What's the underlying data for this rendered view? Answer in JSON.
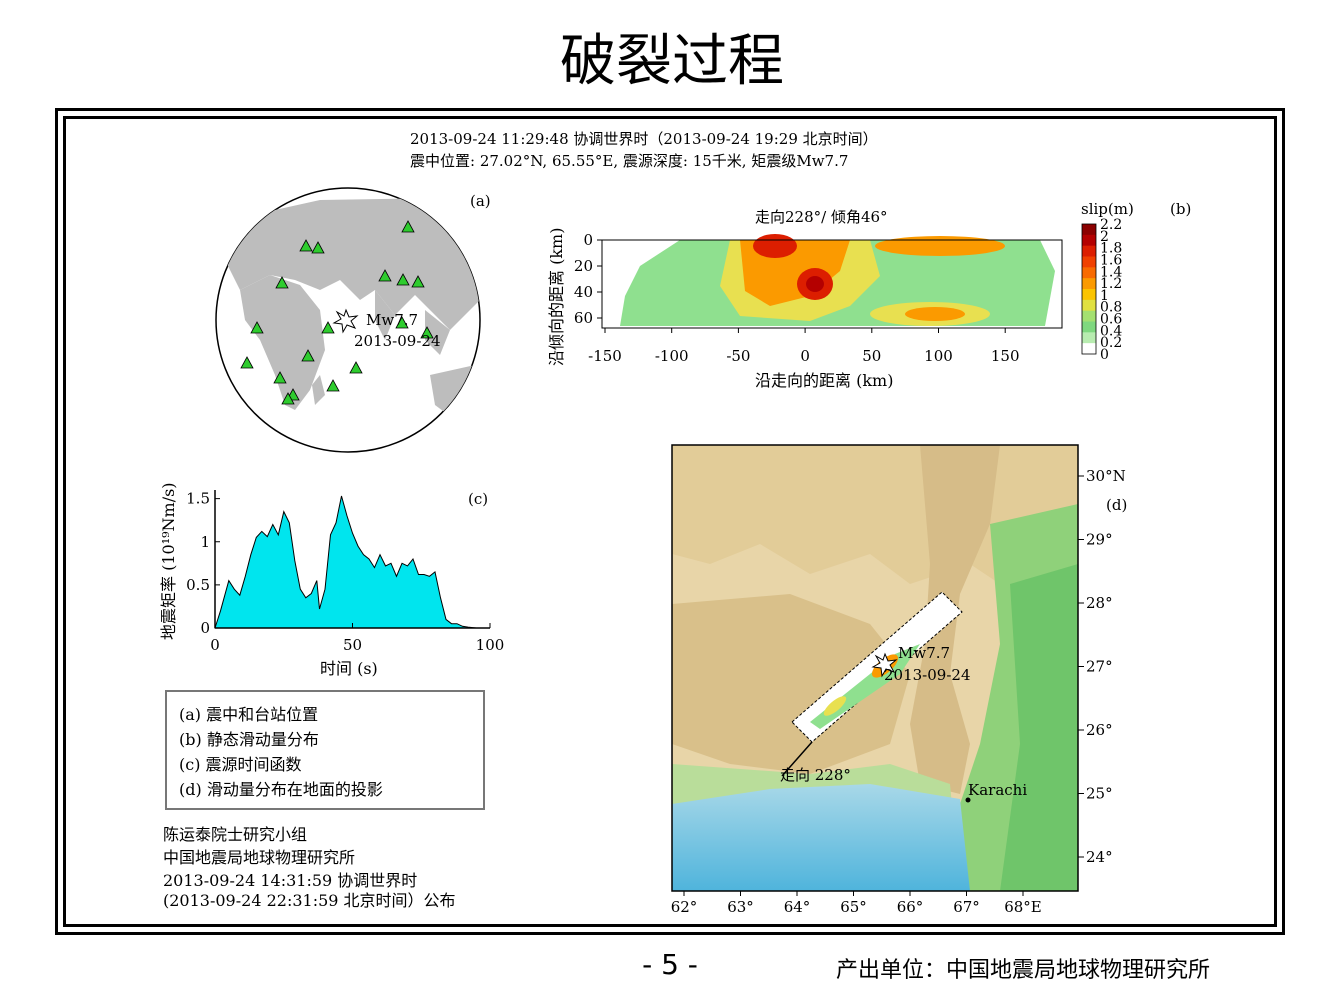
{
  "title": "破裂过程",
  "header": {
    "line1": "2013-09-24 11:29:48 协调世界时（2013-09-24 19:29 北京时间）",
    "line2": "震中位置: 27.02°N, 65.55°E, 震源深度: 15千米, 矩震级Mw7.7"
  },
  "panel_a": {
    "label": "(a)",
    "event_mag": "Mw7.7",
    "event_date": "2013-09-24",
    "station_color": "#2ecc2e",
    "land_color": "#bdbdbd"
  },
  "panel_b": {
    "label": "(b)",
    "subtitle": "走向228°/ 倾角46°",
    "xlabel": "沿走向的距离 (km)",
    "ylabel": "沿倾向的距离 (km)",
    "x_ticks": [
      "-150",
      "-100",
      "-50",
      "0",
      "50",
      "100",
      "150"
    ],
    "y_ticks": [
      "0",
      "20",
      "40",
      "60"
    ],
    "colorbar_title": "slip(m)",
    "colorbar_ticks": [
      "2.2",
      "2",
      "1.8",
      "1.6",
      "1.4",
      "1.2",
      "1",
      "0.8",
      "0.6",
      "0.4",
      "0.2",
      "0"
    ],
    "colorbar_colors": [
      "#8b0000",
      "#b40000",
      "#dc1e00",
      "#f04000",
      "#f86a00",
      "#fb9a00",
      "#fbc400",
      "#e0e040",
      "#a4e070",
      "#7fd87f",
      "#b8ecb0",
      "#ffffff"
    ]
  },
  "panel_c": {
    "label": "(c)",
    "xlabel": "时间 (s)",
    "ylabel": "地震矩率 (10¹⁹Nm/s)",
    "x_ticks": [
      "0",
      "50",
      "100"
    ],
    "y_ticks": [
      "0",
      "0.5",
      "1",
      "1.5"
    ],
    "fill_color": "#00e5ee"
  },
  "chart_data": {
    "type": "area",
    "x": [
      0,
      2,
      5,
      7,
      9,
      11,
      13,
      15,
      17,
      19,
      21,
      23,
      25,
      27,
      29,
      31,
      33,
      35,
      37,
      38,
      40,
      42,
      44,
      46,
      48,
      50,
      52,
      54,
      56,
      58,
      60,
      62,
      64,
      66,
      68,
      70,
      72,
      74,
      76,
      78,
      80,
      82,
      84,
      86,
      88,
      90,
      92,
      95
    ],
    "y": [
      0,
      0.2,
      0.55,
      0.45,
      0.38,
      0.6,
      0.85,
      1.05,
      1.12,
      1.06,
      1.2,
      1.08,
      1.35,
      1.22,
      0.78,
      0.45,
      0.35,
      0.4,
      0.55,
      0.22,
      0.45,
      1.08,
      1.22,
      1.53,
      1.3,
      1.1,
      0.95,
      0.85,
      0.8,
      0.7,
      0.85,
      0.72,
      0.75,
      0.6,
      0.75,
      0.72,
      0.8,
      0.62,
      0.62,
      0.6,
      0.65,
      0.35,
      0.1,
      0.05,
      0.05,
      0.02,
      0.01,
      0
    ],
    "xlabel": "时间 (s)",
    "ylabel": "地震矩率 (10¹⁹Nm/s)",
    "xlim": [
      0,
      100
    ],
    "ylim": [
      0,
      1.6
    ]
  },
  "panel_d": {
    "label": "(d)",
    "event_mag": "Mw7.7",
    "event_date": "2013-09-24",
    "strike_label": "走向 228°",
    "city": "Karachi",
    "lat_ticks": [
      "30°N",
      "29°",
      "28°",
      "27°",
      "26°",
      "25°",
      "24°"
    ],
    "lon_ticks": [
      "62°",
      "63°",
      "64°",
      "65°",
      "66°",
      "67°",
      "68°E"
    ]
  },
  "legend": {
    "items": [
      "(a) 震中和台站位置",
      "(b) 静态滑动量分布",
      "(c) 震源时间函数",
      "(d) 滑动量分布在地面的投影"
    ]
  },
  "credits": {
    "line1": "陈运泰院士研究小组",
    "line2": "中国地震局地球物理研究所",
    "line3": "2013-09-24 14:31:59 协调世界时",
    "line4": "(2013-09-24 22:31:59 北京时间）公布"
  },
  "footer": {
    "page_number": "- 5 -",
    "publisher": "产出单位：中国地震局地球物理研究所"
  }
}
